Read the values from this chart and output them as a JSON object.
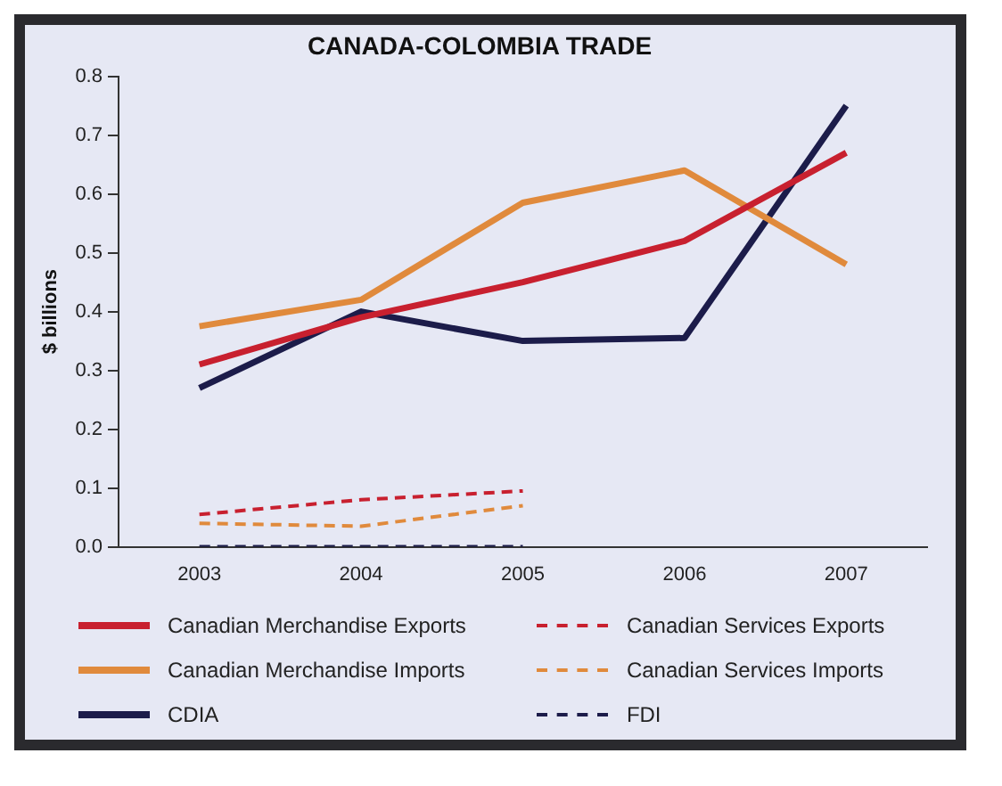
{
  "chart_data": {
    "type": "line",
    "title": "CANADA-COLOMBIA TRADE",
    "ylabel": "$ billions",
    "categories": [
      "2003",
      "2004",
      "2005",
      "2006",
      "2007"
    ],
    "ylim": [
      0,
      0.8
    ],
    "yticks": [
      {
        "value": 0,
        "label": "0.0"
      },
      0.1,
      0.2,
      0.3,
      0.4,
      0.5,
      0.6,
      0.7,
      0.8
    ],
    "grid": false,
    "legend": "bottom",
    "marker": "none",
    "series": [
      {
        "name": "Canadian Merchandise Exports",
        "color": "#c8202f",
        "line_style": "solid",
        "values": [
          0.31,
          0.39,
          0.45,
          0.52,
          0.67
        ]
      },
      {
        "name": "Canadian Merchandise Imports",
        "color": "#e08a3c",
        "line_style": "solid",
        "values": [
          0.375,
          0.42,
          0.585,
          0.64,
          0.48
        ]
      },
      {
        "name": "CDIA",
        "color": "#1c1c4a",
        "line_style": "solid",
        "values": [
          0.27,
          0.4,
          0.35,
          0.355,
          0.75
        ]
      },
      {
        "name": "Canadian Services Exports",
        "color": "#c8202f",
        "line_style": "dashed",
        "values": [
          0.055,
          0.08,
          0.095,
          null,
          null
        ]
      },
      {
        "name": "Canadian Services Imports",
        "color": "#e08a3c",
        "line_style": "dashed",
        "values": [
          0.04,
          0.035,
          0.07,
          null,
          null
        ]
      },
      {
        "name": "FDI",
        "color": "#1c1c4a",
        "line_style": "dashed",
        "values": [
          0,
          0,
          0,
          null,
          null
        ]
      }
    ]
  }
}
